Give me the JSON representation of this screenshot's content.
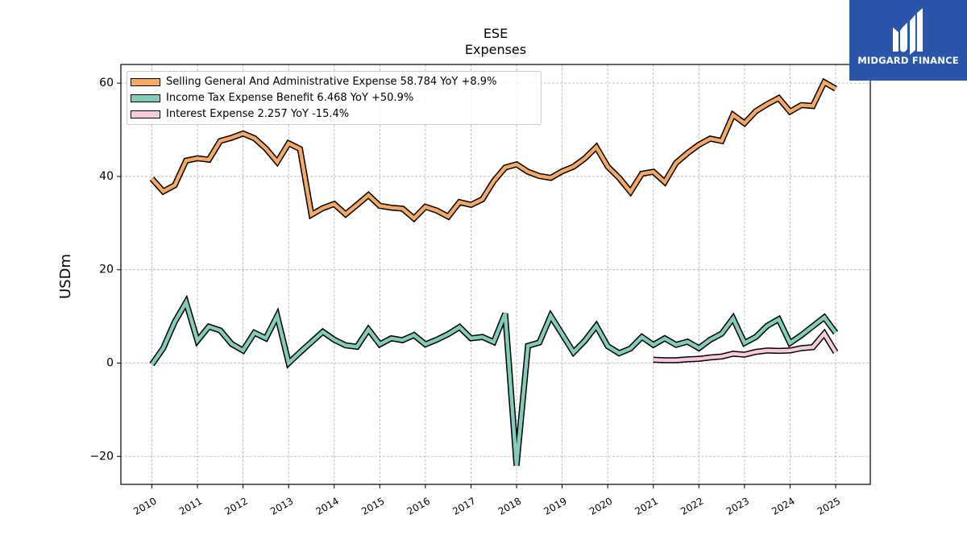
{
  "chart_data": {
    "type": "line",
    "title": "ESE",
    "subtitle": "Expenses",
    "xlabel": "",
    "ylabel": "USDm",
    "ylim": [
      -26,
      64
    ],
    "yticks": [
      -20,
      0,
      20,
      40,
      60
    ],
    "xlim": [
      2009.32,
      2025.76
    ],
    "xticks": [
      2010,
      2011,
      2012,
      2013,
      2014,
      2015,
      2016,
      2017,
      2018,
      2019,
      2020,
      2021,
      2022,
      2023,
      2024,
      2025
    ],
    "grid": true,
    "legend_position": "top-left",
    "series": [
      {
        "name": "Selling General And Administrative Expense",
        "legend": "Selling General And Administrative Expense  58.784 YoY +8.9%",
        "color": "#f6a965",
        "x": [
          2010.0,
          2010.25,
          2010.5,
          2010.75,
          2011.0,
          2011.25,
          2011.5,
          2011.75,
          2012.0,
          2012.25,
          2012.5,
          2012.75,
          2013.0,
          2013.25,
          2013.5,
          2013.75,
          2014.0,
          2014.25,
          2014.5,
          2014.75,
          2015.0,
          2015.25,
          2015.5,
          2015.75,
          2016.0,
          2016.25,
          2016.5,
          2016.75,
          2017.0,
          2017.25,
          2017.5,
          2017.75,
          2018.0,
          2018.25,
          2018.5,
          2018.75,
          2019.0,
          2019.25,
          2019.5,
          2019.75,
          2020.0,
          2020.25,
          2020.5,
          2020.75,
          2021.0,
          2021.25,
          2021.5,
          2021.75,
          2022.0,
          2022.25,
          2022.5,
          2022.75,
          2023.0,
          2023.25,
          2023.5,
          2023.75,
          2024.0,
          2024.25,
          2024.5,
          2024.75,
          2025.0
        ],
        "values": [
          39.5,
          36.8,
          38.1,
          43.4,
          43.9,
          43.6,
          47.6,
          48.3,
          49.2,
          48.2,
          46.0,
          43.1,
          47.1,
          45.9,
          31.8,
          33.2,
          34.1,
          31.9,
          33.9,
          36.0,
          33.7,
          33.3,
          33.1,
          31.0,
          33.5,
          32.7,
          31.4,
          34.5,
          33.9,
          35.1,
          39.0,
          41.9,
          42.6,
          41.0,
          40.1,
          39.7,
          41.1,
          42.1,
          43.9,
          46.3,
          42.1,
          39.7,
          36.7,
          40.6,
          41.0,
          38.8,
          42.9,
          45.0,
          46.8,
          48.1,
          47.6,
          53.2,
          51.4,
          54.0,
          55.5,
          56.8,
          53.9,
          55.3,
          55.1,
          60.2,
          58.8
        ]
      },
      {
        "name": "Income Tax Expense Benefit",
        "legend": "Income Tax Expense Benefit  6.468 YoY +50.9%",
        "color": "#83cbbb",
        "x": [
          2010.0,
          2010.25,
          2010.5,
          2010.75,
          2011.0,
          2011.25,
          2011.5,
          2011.75,
          2012.0,
          2012.25,
          2012.5,
          2012.75,
          2013.0,
          2013.25,
          2013.5,
          2013.75,
          2014.0,
          2014.25,
          2014.5,
          2014.75,
          2015.0,
          2015.25,
          2015.5,
          2015.75,
          2016.0,
          2016.25,
          2016.5,
          2016.75,
          2017.0,
          2017.25,
          2017.5,
          2017.75,
          2018.0,
          2018.25,
          2018.5,
          2018.75,
          2019.0,
          2019.25,
          2019.5,
          2019.75,
          2020.0,
          2020.25,
          2020.5,
          2020.75,
          2021.0,
          2021.25,
          2021.5,
          2021.75,
          2022.0,
          2022.25,
          2022.5,
          2022.75,
          2023.0,
          2023.25,
          2023.5,
          2023.75,
          2024.0,
          2024.25,
          2024.5,
          2024.75,
          2025.0
        ],
        "values": [
          -0.3,
          3.2,
          8.8,
          13.0,
          4.8,
          7.8,
          7.0,
          4.1,
          2.7,
          6.5,
          5.3,
          10.1,
          0.0,
          2.3,
          4.5,
          6.7,
          5.0,
          3.8,
          3.5,
          7.2,
          4.0,
          5.3,
          4.9,
          6.0,
          4.0,
          5.0,
          6.2,
          7.7,
          5.3,
          5.6,
          4.5,
          10.6,
          -22.0,
          3.7,
          4.4,
          10.1,
          6.2,
          2.3,
          4.8,
          8.0,
          3.6,
          2.1,
          3.1,
          5.6,
          3.9,
          5.3,
          3.9,
          4.6,
          3.2,
          5.0,
          6.3,
          9.6,
          4.3,
          5.6,
          8.0,
          9.4,
          4.3,
          6.0,
          7.9,
          9.8,
          6.5
        ]
      },
      {
        "name": "Interest Expense",
        "legend": "Interest Expense  2.257 YoY -15.4%",
        "color": "#f9c9e0",
        "x": [
          2021.0,
          2021.25,
          2021.5,
          2021.75,
          2022.0,
          2022.25,
          2022.5,
          2022.75,
          2023.0,
          2023.25,
          2023.5,
          2023.75,
          2024.0,
          2024.25,
          2024.5,
          2024.75,
          2025.0
        ],
        "values": [
          0.7,
          0.6,
          0.6,
          0.8,
          0.9,
          1.2,
          1.4,
          2.0,
          1.8,
          2.4,
          2.7,
          2.6,
          2.7,
          3.2,
          3.4,
          6.3,
          2.3
        ]
      }
    ]
  },
  "logo": {
    "text": "MIDGARD FINANCE",
    "color": "#2a55a8"
  }
}
